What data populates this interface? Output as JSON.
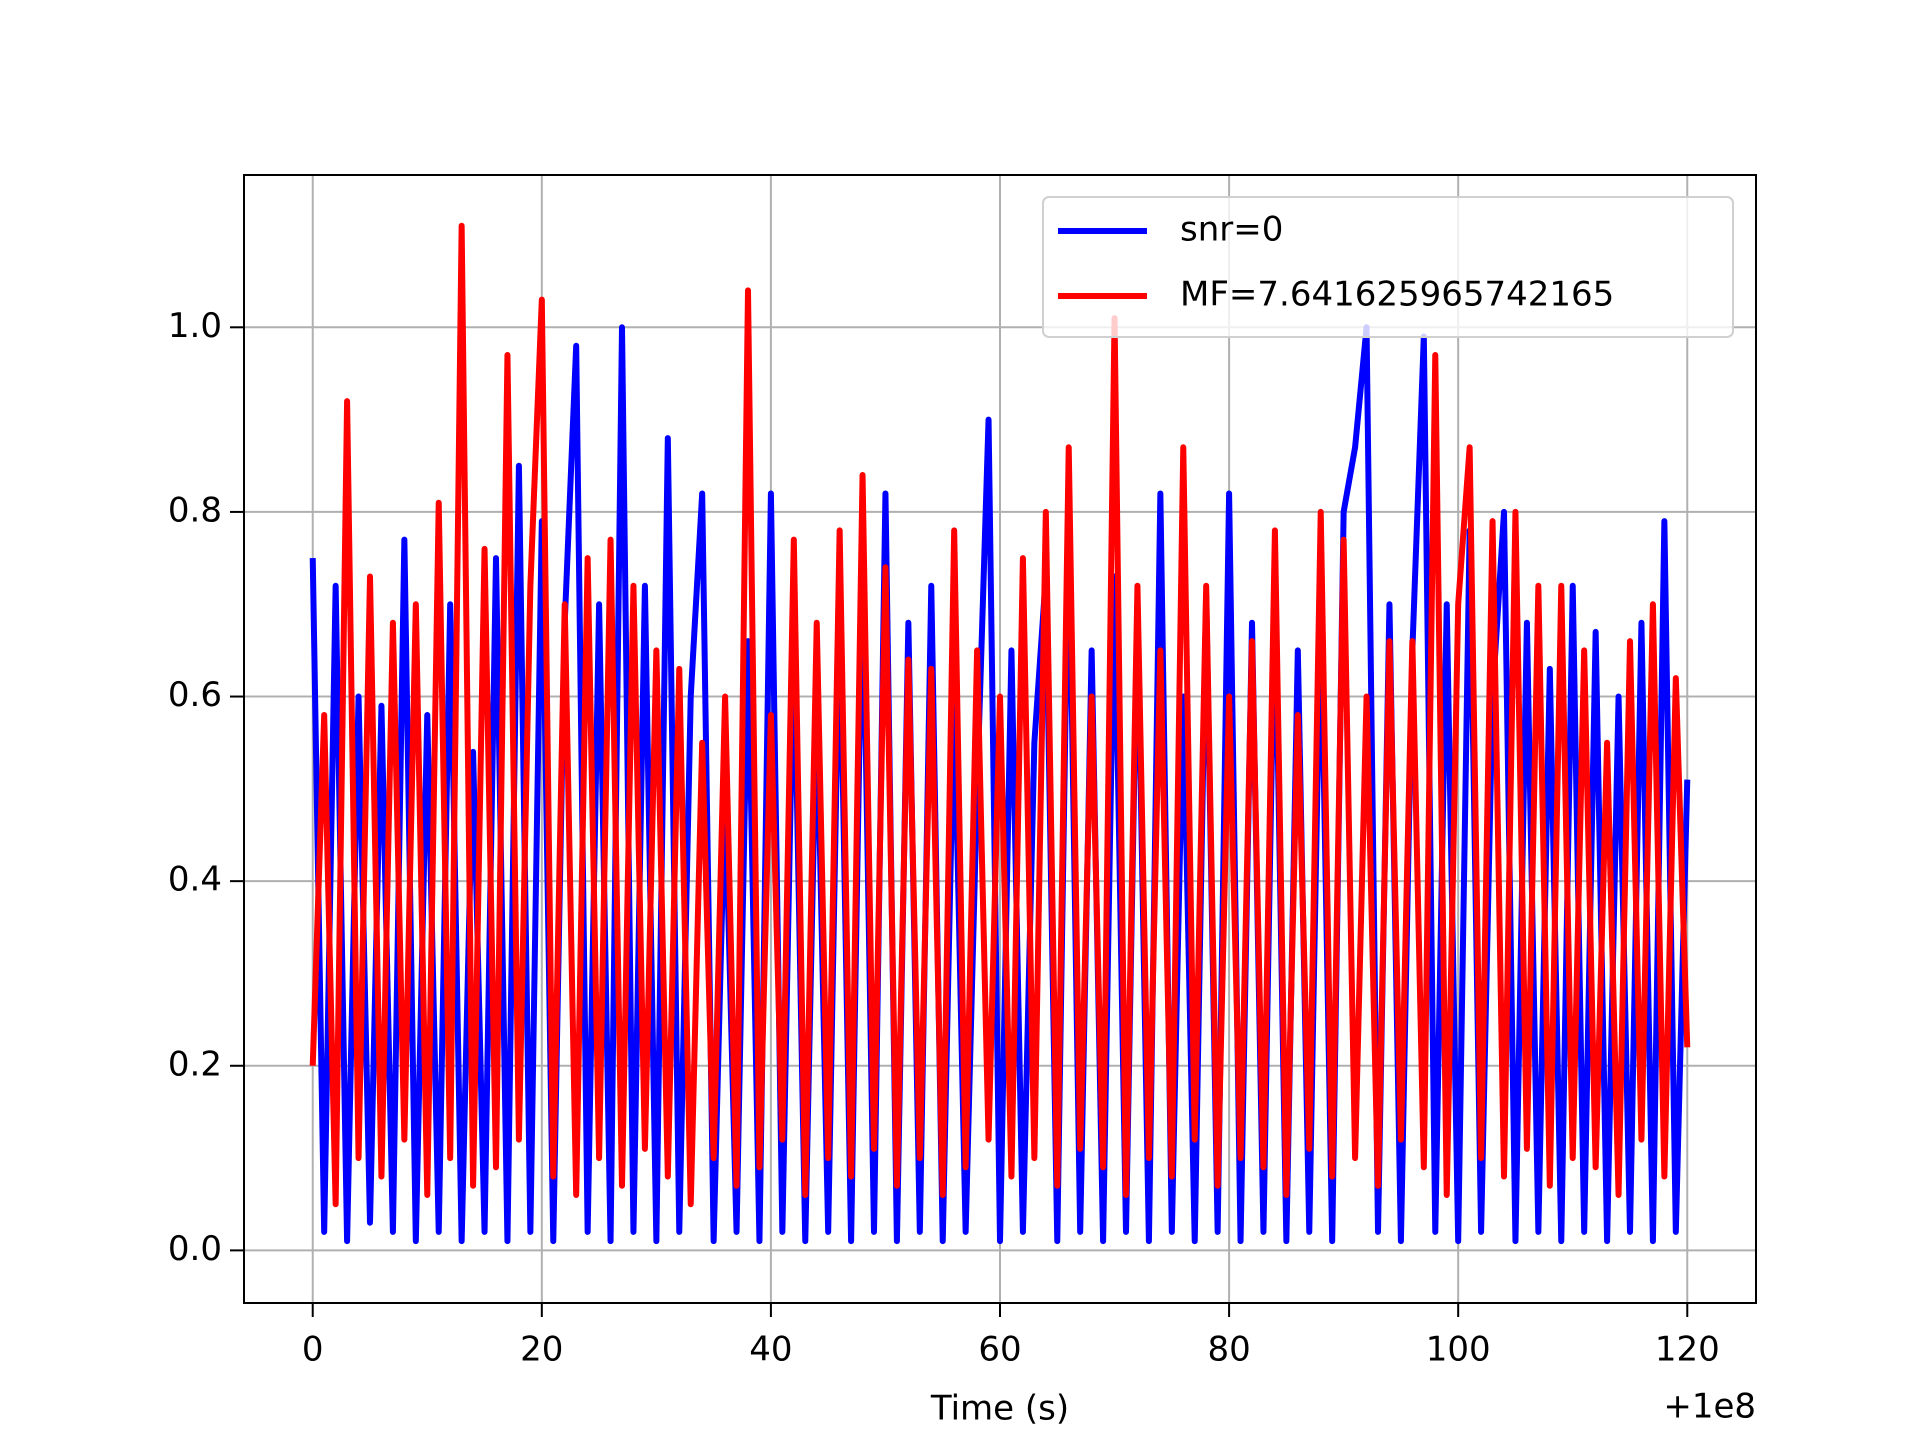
{
  "chart_data": {
    "type": "line",
    "xlabel": "Time (s)",
    "x_offset_label": "+1e8",
    "x": [
      0,
      1,
      2,
      3,
      4,
      5,
      6,
      7,
      8,
      9,
      10,
      11,
      12,
      13,
      14,
      15,
      16,
      17,
      18,
      19,
      20,
      21,
      22,
      23,
      24,
      25,
      26,
      27,
      28,
      29,
      30,
      31,
      32,
      33,
      34,
      35,
      36,
      37,
      38,
      39,
      40,
      41,
      42,
      43,
      44,
      45,
      46,
      47,
      48,
      49,
      50,
      51,
      52,
      53,
      54,
      55,
      56,
      57,
      58,
      59,
      60,
      61,
      62,
      63,
      64,
      65,
      66,
      67,
      68,
      69,
      70,
      71,
      72,
      73,
      74,
      75,
      76,
      77,
      78,
      79,
      80,
      81,
      82,
      83,
      84,
      85,
      86,
      87,
      88,
      89,
      90,
      91,
      92,
      93,
      94,
      95,
      96,
      97,
      98,
      99,
      100,
      101,
      102,
      103,
      104,
      105,
      106,
      107,
      108,
      109,
      110,
      111,
      112,
      113,
      114,
      115,
      116,
      117,
      118,
      119,
      120
    ],
    "series": [
      {
        "name": "snr=0",
        "color": "#0000ff",
        "values": [
          0.75,
          0.02,
          0.72,
          0.01,
          0.6,
          0.03,
          0.59,
          0.02,
          0.77,
          0.01,
          0.58,
          0.02,
          0.7,
          0.01,
          0.54,
          0.02,
          0.75,
          0.01,
          0.85,
          0.02,
          0.79,
          0.01,
          0.68,
          0.98,
          0.02,
          0.7,
          0.01,
          1.0,
          0.02,
          0.72,
          0.01,
          0.88,
          0.02,
          0.6,
          0.82,
          0.01,
          0.5,
          0.02,
          0.66,
          0.01,
          0.82,
          0.02,
          0.67,
          0.01,
          0.6,
          0.02,
          0.7,
          0.01,
          0.75,
          0.02,
          0.82,
          0.01,
          0.68,
          0.02,
          0.72,
          0.01,
          0.6,
          0.02,
          0.5,
          0.9,
          0.01,
          0.65,
          0.02,
          0.55,
          0.73,
          0.01,
          0.8,
          0.02,
          0.65,
          0.01,
          0.73,
          0.02,
          0.7,
          0.01,
          0.82,
          0.02,
          0.6,
          0.01,
          0.71,
          0.02,
          0.82,
          0.01,
          0.68,
          0.02,
          0.72,
          0.01,
          0.65,
          0.02,
          0.7,
          0.01,
          0.8,
          0.87,
          1.0,
          0.02,
          0.7,
          0.01,
          0.65,
          0.99,
          0.02,
          0.7,
          0.01,
          0.78,
          0.02,
          0.6,
          0.8,
          0.01,
          0.68,
          0.02,
          0.63,
          0.01,
          0.72,
          0.02,
          0.67,
          0.01,
          0.6,
          0.02,
          0.68,
          0.01,
          0.79,
          0.02,
          0.51
        ]
      },
      {
        "name": "MF=7.641625965742165",
        "color": "#ff0000",
        "values": [
          0.2,
          0.58,
          0.05,
          0.92,
          0.1,
          0.73,
          0.08,
          0.68,
          0.12,
          0.7,
          0.06,
          0.81,
          0.1,
          1.11,
          0.07,
          0.76,
          0.09,
          0.97,
          0.12,
          0.72,
          1.03,
          0.08,
          0.7,
          0.06,
          0.75,
          0.1,
          0.77,
          0.07,
          0.72,
          0.11,
          0.65,
          0.08,
          0.63,
          0.05,
          0.55,
          0.1,
          0.6,
          0.07,
          1.04,
          0.09,
          0.58,
          0.12,
          0.77,
          0.06,
          0.68,
          0.1,
          0.78,
          0.08,
          0.84,
          0.11,
          0.74,
          0.07,
          0.64,
          0.1,
          0.63,
          0.06,
          0.78,
          0.09,
          0.65,
          0.12,
          0.6,
          0.08,
          0.75,
          0.1,
          0.8,
          0.07,
          0.87,
          0.11,
          0.6,
          0.09,
          1.01,
          0.06,
          0.72,
          0.1,
          0.65,
          0.08,
          0.87,
          0.12,
          0.72,
          0.07,
          0.6,
          0.1,
          0.66,
          0.09,
          0.78,
          0.06,
          0.58,
          0.11,
          0.8,
          0.08,
          0.77,
          0.1,
          0.6,
          0.07,
          0.66,
          0.12,
          0.66,
          0.09,
          0.97,
          0.06,
          0.7,
          0.87,
          0.1,
          0.79,
          0.08,
          0.8,
          0.11,
          0.72,
          0.07,
          0.72,
          0.1,
          0.65,
          0.09,
          0.55,
          0.06,
          0.66,
          0.12,
          0.7,
          0.08,
          0.62,
          0.22
        ]
      }
    ],
    "xlim": [
      -6,
      126
    ],
    "xticks": [
      0,
      20,
      40,
      60,
      80,
      100,
      120
    ],
    "ylim": [
      -0.057,
      1.165
    ],
    "yticks": [
      {
        "value": 0,
        "label": "0.0"
      },
      0.2,
      0.4,
      0.6,
      0.8,
      {
        "value": 1,
        "label": "1.0"
      }
    ],
    "grid": true,
    "legend": "upper right"
  }
}
